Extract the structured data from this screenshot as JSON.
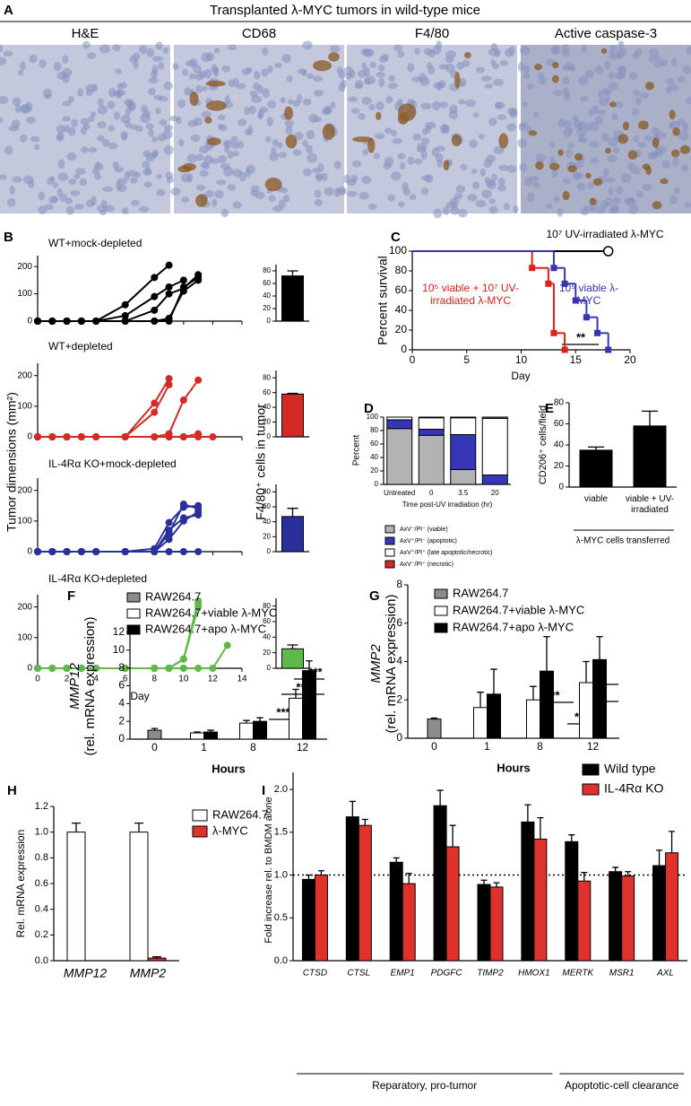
{
  "panel_a": {
    "label": "A",
    "title": "Transplanted λ-MYC tumors in wild-type mice",
    "images": [
      "H&E",
      "CD68",
      "F4/80",
      "Active caspase-3"
    ]
  },
  "panel_b": {
    "label": "B",
    "ylabel": "Tumor dimensions (mm²)",
    "bar_ylabel": "F4/80⁺ cells in tumor"
  },
  "chart_data": [
    {
      "type": "line",
      "title": "WT+mock-depleted",
      "color": "#000000",
      "x": [
        0,
        1,
        2,
        3,
        4,
        6,
        8,
        9,
        10,
        11,
        12,
        13
      ],
      "series": [
        {
          "values": [
            0,
            0,
            0,
            0,
            0,
            60,
            160,
            205,
            null,
            null,
            null,
            null
          ]
        },
        {
          "values": [
            0,
            0,
            0,
            0,
            0,
            20,
            90,
            125,
            150,
            null,
            null,
            null
          ]
        },
        {
          "values": [
            0,
            0,
            0,
            0,
            0,
            0,
            40,
            100,
            120,
            170,
            null,
            null
          ]
        },
        {
          "values": [
            0,
            0,
            0,
            0,
            0,
            0,
            0,
            0,
            125,
            160,
            null,
            null
          ]
        },
        {
          "values": [
            0,
            0,
            0,
            0,
            0,
            0,
            0,
            10,
            110,
            150,
            null,
            null
          ]
        }
      ],
      "xlim": [
        0,
        14
      ],
      "xticks": [
        0,
        2,
        4,
        6,
        8,
        10,
        12,
        14
      ],
      "ylim": [
        0,
        240
      ],
      "yticks": [
        0,
        100,
        200
      ]
    },
    {
      "type": "line",
      "title": "WT+depleted",
      "color": "#d42a26",
      "x": [
        0,
        1,
        2,
        3,
        4,
        6,
        8,
        9,
        10,
        11,
        12,
        13
      ],
      "series": [
        {
          "values": [
            0,
            0,
            0,
            0,
            0,
            0,
            110,
            190,
            null,
            null,
            null,
            null
          ]
        },
        {
          "values": [
            0,
            0,
            0,
            0,
            0,
            0,
            80,
            170,
            null,
            null,
            null,
            null
          ]
        },
        {
          "values": [
            0,
            0,
            0,
            0,
            0,
            0,
            0,
            10,
            120,
            185,
            null,
            null
          ]
        },
        {
          "values": [
            0,
            0,
            0,
            0,
            0,
            0,
            0,
            0,
            0,
            0,
            0,
            null
          ]
        },
        {
          "values": [
            0,
            0,
            0,
            0,
            0,
            0,
            0,
            0,
            0,
            10,
            null,
            null
          ]
        }
      ],
      "xlim": [
        0,
        14
      ],
      "xticks": [
        0,
        2,
        4,
        6,
        8,
        10,
        12,
        14
      ],
      "ylim": [
        0,
        240
      ],
      "yticks": [
        0,
        100,
        200
      ]
    },
    {
      "type": "line",
      "title": "IL-4Rα KO+mock-depleted",
      "color": "#2b2f9c",
      "x": [
        0,
        1,
        2,
        3,
        4,
        6,
        8,
        9,
        10,
        11,
        12,
        13
      ],
      "series": [
        {
          "values": [
            0,
            0,
            0,
            0,
            0,
            0,
            0,
            70,
            110,
            120,
            null,
            null
          ]
        },
        {
          "values": [
            0,
            0,
            0,
            0,
            0,
            0,
            10,
            95,
            145,
            150,
            null,
            null
          ]
        },
        {
          "values": [
            0,
            0,
            0,
            0,
            0,
            0,
            0,
            60,
            155,
            140,
            null,
            null
          ]
        },
        {
          "values": [
            0,
            0,
            0,
            0,
            0,
            0,
            0,
            40,
            100,
            130,
            null,
            null
          ]
        },
        {
          "values": [
            0,
            0,
            0,
            0,
            0,
            0,
            0,
            0,
            0,
            0,
            null,
            null
          ]
        }
      ],
      "xlim": [
        0,
        14
      ],
      "xticks": [
        0,
        2,
        4,
        6,
        8,
        10,
        12,
        14
      ],
      "ylim": [
        0,
        240
      ],
      "yticks": [
        0,
        100,
        200
      ]
    },
    {
      "type": "line",
      "title": "IL-4Rα KO+depleted",
      "color": "#5fb94a",
      "x": [
        0,
        1,
        2,
        3,
        4,
        6,
        8,
        9,
        10,
        11,
        12,
        13
      ],
      "series": [
        {
          "values": [
            0,
            0,
            0,
            0,
            0,
            0,
            0,
            0,
            30,
            220,
            null,
            null
          ]
        },
        {
          "values": [
            0,
            0,
            0,
            0,
            0,
            0,
            0,
            0,
            30,
            210,
            null,
            null
          ]
        },
        {
          "values": [
            0,
            0,
            0,
            0,
            0,
            0,
            0,
            0,
            30,
            200,
            null,
            null
          ]
        },
        {
          "values": [
            0,
            0,
            0,
            0,
            0,
            0,
            0,
            0,
            0,
            0,
            0,
            75
          ]
        },
        {
          "values": [
            0,
            0,
            0,
            0,
            0,
            0,
            0,
            0,
            0,
            null,
            null,
            null
          ]
        }
      ],
      "xlim": [
        0,
        14
      ],
      "xticks": [
        0,
        2,
        4,
        6,
        8,
        10,
        12,
        14
      ],
      "xlabel": "Day",
      "ylim": [
        0,
        240
      ],
      "yticks": [
        0,
        100,
        200
      ]
    },
    {
      "type": "bar",
      "values": [
        72
      ],
      "errors": [
        8
      ],
      "color": "#000000",
      "ylim": [
        0,
        90
      ],
      "yticks": [
        0,
        20,
        40,
        60,
        80
      ]
    },
    {
      "type": "bar",
      "values": [
        58
      ],
      "errors": [
        1
      ],
      "color": "#d42a26",
      "ylim": [
        0,
        90
      ],
      "yticks": [
        0,
        20,
        40,
        60,
        80
      ]
    },
    {
      "type": "bar",
      "values": [
        47
      ],
      "errors": [
        11
      ],
      "color": "#2b2f9c",
      "ylim": [
        0,
        90
      ],
      "yticks": [
        0,
        20,
        40,
        60,
        80
      ]
    },
    {
      "type": "bar",
      "values": [
        25
      ],
      "errors": [
        5
      ],
      "color": "#5fb94a",
      "ylim": [
        0,
        90
      ],
      "yticks": [
        0,
        20,
        40,
        60,
        80
      ],
      "annotations": [
        "**"
      ]
    },
    {
      "type": "step",
      "panel": "C",
      "xlabel": "Day",
      "ylabel": "Percent survival",
      "xlim": [
        0,
        20
      ],
      "xticks": [
        0,
        5,
        10,
        15,
        20
      ],
      "ylim": [
        0,
        100
      ],
      "yticks": [
        0,
        20,
        40,
        60,
        80,
        100
      ],
      "series": [
        {
          "name": "10⁷ UV-irradiated λ-MYC",
          "color": "#000000",
          "marker": "open-circle",
          "x": [
            0,
            18
          ],
          "values": [
            100,
            100
          ]
        },
        {
          "name": "10⁵ viable + 10⁷ UV-irradiated λ-MYC",
          "color": "#e0201b",
          "marker": "square",
          "x": [
            0,
            11,
            12.5,
            13,
            14
          ],
          "values": [
            100,
            83,
            67,
            17,
            0
          ]
        },
        {
          "name": "10⁵ viable λ-MYC",
          "color": "#3535b5",
          "marker": "square",
          "x": [
            0,
            13,
            14,
            15,
            16,
            17,
            18
          ],
          "values": [
            100,
            83,
            67,
            50,
            33,
            17,
            0
          ]
        }
      ],
      "annotations": [
        "**"
      ]
    },
    {
      "type": "bar",
      "stacked": true,
      "panel": "D",
      "ylabel": "Percent",
      "xlabel": "Time post-UV irradiation (hr)",
      "categories": [
        "Untreated",
        "0",
        "3.5",
        "20"
      ],
      "ylim": [
        0,
        100
      ],
      "yticks": [
        0,
        20,
        40,
        60,
        80,
        100
      ],
      "series": [
        {
          "name": "AxV⁻/PI⁻ (viable)",
          "color": "#b3b3b3",
          "values": [
            83,
            73,
            22,
            0
          ]
        },
        {
          "name": "AxV⁺/PI⁻ (apoptotic)",
          "color": "#3636b8",
          "values": [
            13,
            9,
            52,
            14
          ]
        },
        {
          "name": "AxV⁺/PI⁺ (late apoptotic/necrotic)",
          "color": "#ffffff",
          "values": [
            4,
            17,
            25,
            84
          ]
        },
        {
          "name": "AxV⁻/PI⁺ (necrotic)",
          "color": "#d42a26",
          "values": [
            0,
            1,
            1,
            2
          ]
        }
      ]
    },
    {
      "type": "bar",
      "panel": "E",
      "ylabel": "CD206⁺ cells/field",
      "xlabel": "λ-MYC cells transferred",
      "categories": [
        "viable",
        "viable + UV-irradiated"
      ],
      "values": [
        35,
        58
      ],
      "errors": [
        3,
        14
      ],
      "color": "#000000",
      "ylim": [
        0,
        80
      ],
      "yticks": [
        0,
        20,
        40,
        60,
        80
      ]
    },
    {
      "type": "bar",
      "panel": "F",
      "ylabel": [
        "MMP12",
        "(rel. mRNA expression)"
      ],
      "xlabel": "Hours",
      "categories": [
        "0",
        "1",
        "8",
        "12"
      ],
      "ylim": [
        0,
        12
      ],
      "yticks": [
        0,
        2,
        4,
        6,
        8,
        10,
        12
      ],
      "series": [
        {
          "name": "RAW264.7",
          "color": "#8c8c8c",
          "values": [
            1.0,
            null,
            null,
            null
          ],
          "errors": [
            0.2,
            null,
            null,
            null
          ]
        },
        {
          "name": "RAW264.7+viable λ-MYC",
          "color": "#ffffff",
          "values": [
            null,
            0.7,
            1.8,
            4.6
          ],
          "errors": [
            null,
            0.1,
            0.3,
            1.0
          ]
        },
        {
          "name": "RAW264.7+apo λ-MYC",
          "color": "#000000",
          "values": [
            null,
            0.8,
            2.0,
            7.7
          ],
          "errors": [
            null,
            0.2,
            0.4,
            1.1
          ]
        }
      ],
      "annotations": [
        "***",
        "***",
        "***"
      ]
    },
    {
      "type": "bar",
      "panel": "G",
      "ylabel": [
        "MMP2",
        "(rel. mRNA expression)"
      ],
      "xlabel": "Hours",
      "categories": [
        "0",
        "1",
        "8",
        "12"
      ],
      "ylim": [
        0,
        8
      ],
      "yticks": [
        0,
        2,
        4,
        6,
        8
      ],
      "series": [
        {
          "name": "RAW264.7",
          "color": "#8c8c8c",
          "values": [
            1.0,
            null,
            null,
            null
          ],
          "errors": [
            0.05,
            null,
            null,
            null
          ]
        },
        {
          "name": "RAW264.7+viable λ-MYC",
          "color": "#ffffff",
          "values": [
            null,
            1.6,
            2.0,
            2.9
          ],
          "errors": [
            null,
            0.8,
            0.7,
            1.1
          ]
        },
        {
          "name": "RAW264.7+apo λ-MYC",
          "color": "#000000",
          "values": [
            null,
            2.3,
            3.5,
            4.1
          ],
          "errors": [
            null,
            1.3,
            1.8,
            1.2
          ]
        }
      ],
      "annotations": [
        "***",
        "*",
        "***",
        "**"
      ]
    },
    {
      "type": "bar",
      "panel": "H",
      "ylabel": "Rel. mRNA expression",
      "categories": [
        "MMP12",
        "MMP2"
      ],
      "ylim": [
        0,
        1.2
      ],
      "yticks": [
        {
          "value": 0,
          "label": "0.0"
        },
        0.2,
        0.4,
        0.6,
        0.8,
        {
          "value": 1,
          "label": "1.0"
        },
        1.2
      ],
      "series": [
        {
          "name": "RAW264.7",
          "color": "#ffffff",
          "values": [
            1.0,
            1.0
          ],
          "errors": [
            0.07,
            0.07
          ]
        },
        {
          "name": "λ-MYC",
          "color": "#e0322c",
          "values": [
            0,
            0.02
          ],
          "errors": [
            null,
            0.01
          ]
        }
      ]
    },
    {
      "type": "bar",
      "panel": "I",
      "ylabel": "Fold increase rel. to BMDM alone",
      "categories": [
        "CTSD",
        "CTSL",
        "EMP1",
        "PDGFC",
        "TIMP2",
        "HMOX1",
        "MERTK",
        "MSR1",
        "AXL"
      ],
      "ylim": [
        0,
        2.2
      ],
      "yticks": [
        {
          "value": 0,
          "label": "0.0"
        },
        0.5,
        {
          "value": 1,
          "label": "1.0"
        },
        1.5,
        {
          "value": 2,
          "label": "2.0"
        }
      ],
      "reference_line": 1,
      "series": [
        {
          "name": "Wild type",
          "color": "#000000",
          "values": [
            0.95,
            1.68,
            1.15,
            1.81,
            0.89,
            1.62,
            1.39,
            1.04,
            1.11
          ],
          "errors": [
            0.05,
            0.18,
            0.05,
            0.18,
            0.05,
            0.2,
            0.08,
            0.05,
            0.18
          ]
        },
        {
          "name": "IL-4Rα KO",
          "color": "#e0322c",
          "values": [
            1.0,
            1.58,
            0.9,
            1.33,
            0.86,
            1.42,
            0.93,
            0.99,
            1.26
          ],
          "errors": [
            0.05,
            0.07,
            0.12,
            0.25,
            0.05,
            0.25,
            0.1,
            0.05,
            0.25
          ]
        }
      ],
      "groups": [
        {
          "label": "Reparatory, pro-tumor",
          "size": 6
        },
        {
          "label": "Apoptotic-cell clearance",
          "size": 3
        }
      ]
    }
  ]
}
